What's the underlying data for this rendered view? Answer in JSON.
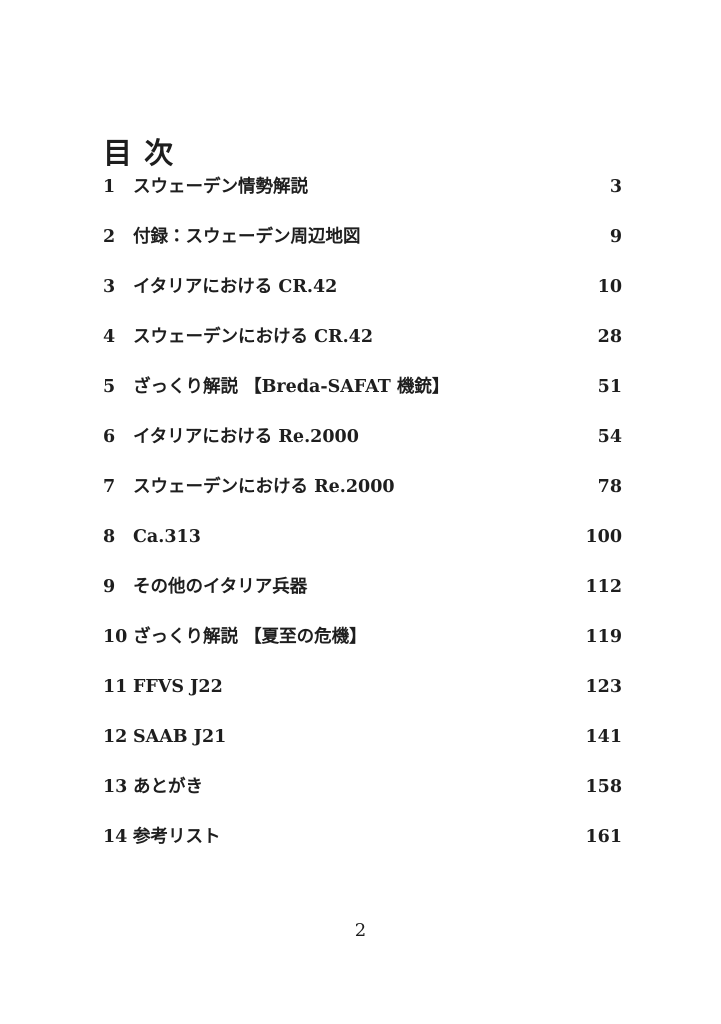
{
  "page": {
    "title": "目 次",
    "footer_page_number": "2"
  },
  "colors": {
    "background": "#ffffff",
    "text": "#1e1e1e"
  },
  "toc": {
    "entries": [
      {
        "num": "1",
        "label": "スウェーデン情勢解説",
        "page": "3"
      },
      {
        "num": "2",
        "label": "付録：スウェーデン周辺地図",
        "page": "9"
      },
      {
        "num": "3",
        "label": "イタリアにおける CR.42",
        "page": "10"
      },
      {
        "num": "4",
        "label": "スウェーデンにおける CR.42",
        "page": "28"
      },
      {
        "num": "5",
        "label": "ざっくり解説 【Breda-SAFAT 機銃】",
        "page": "51"
      },
      {
        "num": "6",
        "label": "イタリアにおける Re.2000",
        "page": "54"
      },
      {
        "num": "7",
        "label": "スウェーデンにおける Re.2000",
        "page": "78"
      },
      {
        "num": "8",
        "label": "Ca.313",
        "page": "100"
      },
      {
        "num": "9",
        "label": "その他のイタリア兵器",
        "page": "112"
      },
      {
        "num": "10",
        "label": "ざっくり解説 【夏至の危機】",
        "page": "119"
      },
      {
        "num": "11",
        "label": "FFVS J22",
        "page": "123"
      },
      {
        "num": "12",
        "label": "SAAB J21",
        "page": "141"
      },
      {
        "num": "13",
        "label": "あとがき",
        "page": "158"
      },
      {
        "num": "14",
        "label": "参考リスト",
        "page": "161"
      }
    ]
  }
}
